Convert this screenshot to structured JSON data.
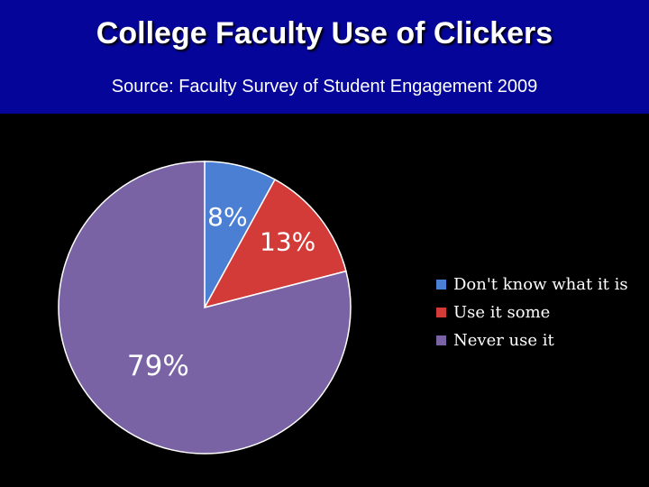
{
  "title": "College Faculty Use of Clickers",
  "subtitle": "Source: Faculty Survey of Student Engagement 2009",
  "colors": {
    "header_bg": "#050599",
    "background": "#000000",
    "text": "#ffffff"
  },
  "chart_data": {
    "type": "pie",
    "start_angle_deg": 0,
    "direction": "clockwise",
    "legend_position": "right",
    "slices": [
      {
        "label": "Don't know what it is",
        "value": 8,
        "display": "8%",
        "color": "#4a7fd4"
      },
      {
        "label": "Use it some",
        "value": 13,
        "display": "13%",
        "color": "#d33b38"
      },
      {
        "label": "Never use it",
        "value": 79,
        "display": "79%",
        "color": "#7a63a4"
      }
    ]
  }
}
